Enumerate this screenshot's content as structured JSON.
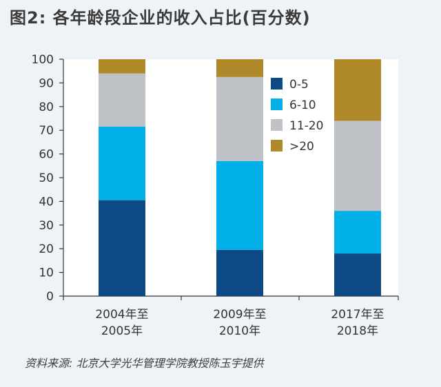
{
  "header": {
    "title": "图2: 各年龄段企业的收入占比(百分数)"
  },
  "footer": {
    "source": "资料来源: 北京大学光华管理学院教授陈玉宇提供"
  },
  "chart_data": {
    "type": "bar",
    "stacked": true,
    "title": "图2: 各年龄段企业的收入占比(百分数)",
    "categories": [
      [
        "2004年至",
        "2005年"
      ],
      [
        "2009年至",
        "2010年"
      ],
      [
        "2017年至",
        "2018年"
      ]
    ],
    "series": [
      {
        "name": "0-5",
        "color": "#0d4a85",
        "values": [
          40.5,
          19.5,
          18
        ]
      },
      {
        "name": "6-10",
        "color": "#00b0e6",
        "values": [
          31,
          37.5,
          18
        ]
      },
      {
        "name": "11-20",
        "color": "#bfc2c6",
        "values": [
          22.5,
          35.5,
          38
        ]
      },
      {
        "name": ">20",
        "color": "#b0892a",
        "values": [
          6,
          7.5,
          26
        ]
      }
    ],
    "ylim": [
      0,
      100
    ],
    "yticks": [
      0,
      10,
      20,
      30,
      40,
      50,
      60,
      70,
      80,
      90,
      100
    ],
    "xlabel": "",
    "ylabel": "",
    "legend": "top-right",
    "source": "资料来源: 北京大学光华管理学院教授陈玉宇提供"
  }
}
